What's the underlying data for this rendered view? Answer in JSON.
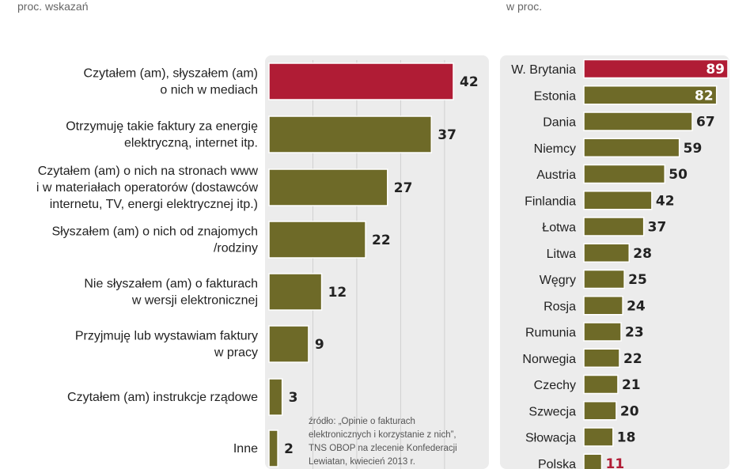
{
  "chart_data": [
    {
      "type": "bar",
      "orientation": "horizontal",
      "unit_label": "proc. wskazań",
      "categories": [
        "Czytałem (am), słyszałem (am)\no nich w mediach",
        "Otrzymuję takie faktury za energię\nelektryczną, internet itp.",
        "Czytałem (am) o nich na stronach www\ni w materiałach operatorów (dostawców\ninternetu, TV, energi elektrycznej itp.)",
        "Słyszałem (am) o nich od znajomych\n/rodziny",
        "Nie słyszałem (am) o fakturach\nw wersji elektronicznej",
        "Przyjmuję lub wystawiam faktury\nw pracy",
        "Czytałem (am) instrukcje rządowe",
        "Inne"
      ],
      "values": [
        42,
        37,
        27,
        22,
        12,
        9,
        3,
        2
      ],
      "highlight_index": 0,
      "xlim": [
        0,
        45
      ],
      "grid": true,
      "source": "źródło: „Opinie o fakturach\nelektronicznych i korzystanie z nich”,\nTNS OBOP na zlecenie Konfederacji\nLewiatan, kwiecień 2013 r."
    },
    {
      "type": "bar",
      "orientation": "horizontal",
      "unit_label": "w proc.",
      "categories": [
        "W. Brytania",
        "Estonia",
        "Dania",
        "Niemcy",
        "Austria",
        "Finlandia",
        "Łotwa",
        "Litwa",
        "Węgry",
        "Rosja",
        "Rumunia",
        "Norwegia",
        "Czechy",
        "Szwecja",
        "Słowacja",
        "Polska"
      ],
      "values": [
        89,
        82,
        67,
        59,
        50,
        42,
        37,
        28,
        25,
        24,
        23,
        22,
        21,
        20,
        18,
        11
      ],
      "highlight_indices": [
        0,
        15
      ],
      "xlim": [
        0,
        89
      ],
      "grid": false
    }
  ],
  "colors": {
    "bar": "#6e6a28",
    "highlight": "#b01c35",
    "panel": "#ececec",
    "gridline": "#d0d0d0"
  }
}
